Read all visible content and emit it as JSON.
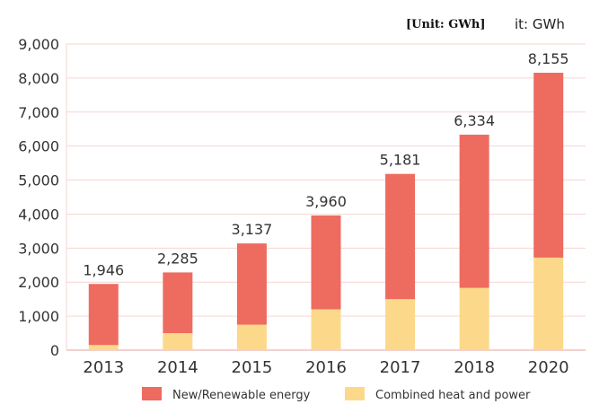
{
  "unit_labels": [
    "[Unit: GWh]",
    "it: GWh"
  ],
  "chart_data": {
    "type": "bar",
    "stacked": true,
    "categories": [
      "2013",
      "2014",
      "2015",
      "2016",
      "2017",
      "2018",
      "2020"
    ],
    "totals": [
      1946,
      2285,
      3137,
      3960,
      5181,
      6334,
      8155
    ],
    "total_labels": [
      "1,946",
      "2,285",
      "3,137",
      "3,960",
      "5,181",
      "6,334",
      "8,155"
    ],
    "series": [
      {
        "name": "Combined heat and power",
        "color": "#fcd98a",
        "values": [
          150,
          500,
          750,
          1200,
          1500,
          1830,
          2720
        ]
      },
      {
        "name": "New/Renewable energy",
        "color": "#ee6b60",
        "values": [
          1796,
          1785,
          2387,
          2760,
          3681,
          4504,
          5435
        ]
      }
    ],
    "ylim": [
      0,
      9000
    ],
    "yticks": [
      0,
      1000,
      2000,
      3000,
      4000,
      5000,
      6000,
      7000,
      8000,
      9000
    ],
    "ytick_labels": [
      "0",
      "1,000",
      "2,000",
      "3,000",
      "4,000",
      "5,000",
      "6,000",
      "7,000",
      "8,000",
      "9,000"
    ],
    "legend": [
      "New/Renewable energy",
      "Combined heat and power"
    ],
    "legend_position": "bottom",
    "grid": true
  }
}
